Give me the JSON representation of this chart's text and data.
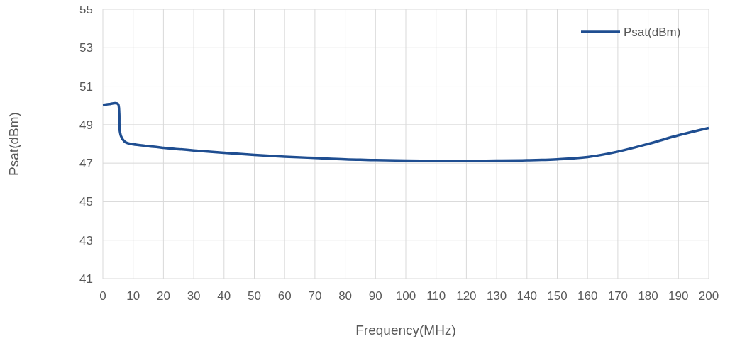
{
  "chart_data": {
    "type": "line",
    "xlabel": "Frequency(MHz)",
    "ylabel": "Psat(dBm)",
    "x": [
      0,
      2,
      4,
      5,
      5.4,
      5.5,
      6,
      7,
      8,
      10,
      20,
      30,
      40,
      50,
      60,
      70,
      80,
      90,
      100,
      110,
      120,
      130,
      140,
      150,
      160,
      170,
      180,
      190,
      200
    ],
    "series": [
      {
        "name": "Psat(dBm)",
        "color": "#1f4e91",
        "values": [
          50.03,
          50.07,
          50.12,
          50.08,
          49.6,
          48.8,
          48.4,
          48.15,
          48.05,
          47.98,
          47.8,
          47.66,
          47.54,
          47.43,
          47.34,
          47.27,
          47.2,
          47.16,
          47.13,
          47.12,
          47.12,
          47.13,
          47.15,
          47.2,
          47.32,
          47.6,
          48.0,
          48.45,
          48.83
        ]
      }
    ],
    "xlim": [
      0,
      200
    ],
    "xticks": [
      0,
      10,
      20,
      30,
      40,
      50,
      60,
      70,
      80,
      90,
      100,
      110,
      120,
      130,
      140,
      150,
      160,
      170,
      180,
      190,
      200
    ],
    "ylim": [
      41,
      55
    ],
    "yticks": [
      41,
      43,
      45,
      47,
      49,
      51,
      53,
      55
    ],
    "grid": true,
    "legend": "top right",
    "marker": "none",
    "line_style": "solid"
  }
}
